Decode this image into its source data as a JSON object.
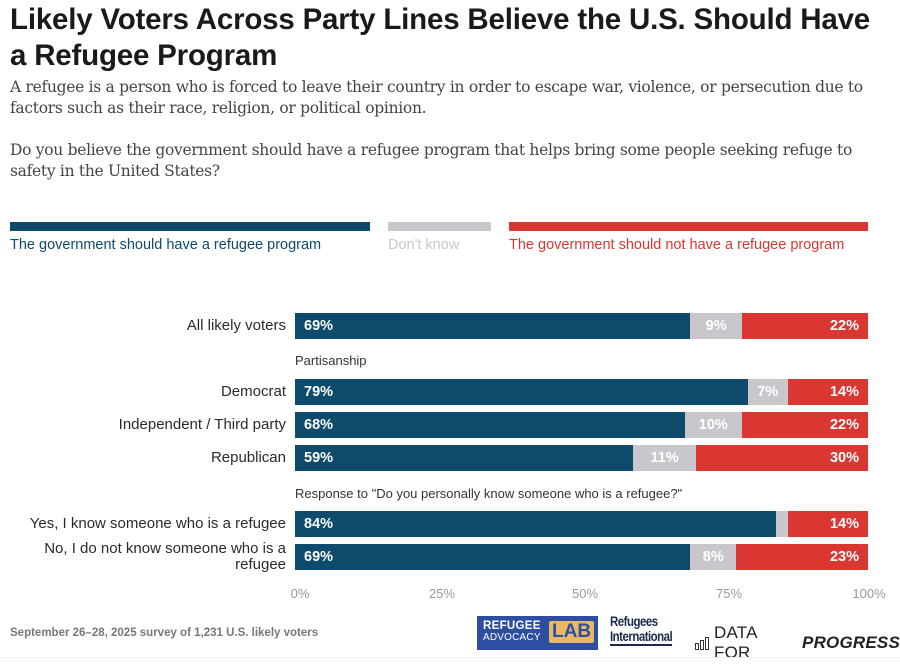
{
  "header": {
    "title": "Likely Voters Across Party Lines Believe the U.S. Should Have a Refugee Program",
    "definition": "A refugee is a person who is forced to leave their country in order to escape war, violence, or persecution due to factors such as their race, religion, or political opinion.",
    "question": "Do you believe the government should have a refugee program that helps bring some people seeking refuge to safety in the United States?"
  },
  "colors": {
    "support": "#0d4a6b",
    "dont_know": "#c9c7cc",
    "oppose": "#da3732",
    "legend_dont_know_text": "#c9c7cc"
  },
  "legend": [
    {
      "key": "support",
      "label": "The government should have a refugee program"
    },
    {
      "key": "dont_know",
      "label": "Don't know"
    },
    {
      "key": "oppose",
      "label": "The government should not have a refugee program"
    }
  ],
  "chart_data": {
    "type": "bar",
    "orientation": "horizontal-stacked",
    "title": "Likely Voters Across Party Lines Believe the U.S. Should Have a Refugee Program",
    "xlabel": "",
    "ylabel": "",
    "xlim": [
      0,
      100
    ],
    "x_ticks": [
      "0%",
      "25%",
      "50%",
      "75%",
      "100%"
    ],
    "legend_position": "top",
    "grid": false,
    "series_names": [
      "The government should have a refugee program",
      "Don't know",
      "The government should not have a refugee program"
    ],
    "groups": [
      {
        "label": "",
        "rows": [
          {
            "label": "All likely voters",
            "support": 69,
            "dont_know": 9,
            "oppose": 22,
            "labels": [
              "69%",
              "9%",
              "22%"
            ]
          }
        ]
      },
      {
        "label": "Partisanship",
        "rows": [
          {
            "label": "Democrat",
            "support": 79,
            "dont_know": 7,
            "oppose": 14,
            "labels": [
              "79%",
              "7%",
              "14%"
            ]
          },
          {
            "label": "Independent / Third party",
            "support": 68,
            "dont_know": 10,
            "oppose": 22,
            "labels": [
              "68%",
              "10%",
              "22%"
            ]
          },
          {
            "label": "Republican",
            "support": 59,
            "dont_know": 11,
            "oppose": 30,
            "labels": [
              "59%",
              "11%",
              "30%"
            ]
          }
        ]
      },
      {
        "label": "Response to \"Do you personally know someone who is a refugee?\"",
        "rows": [
          {
            "label": "Yes, I know someone who is a refugee",
            "support": 84,
            "dont_know": 2,
            "oppose": 14,
            "labels": [
              "84%",
              "",
              "14%"
            ]
          },
          {
            "label": "No, I do not know someone who is a refugee",
            "support": 69,
            "dont_know": 8,
            "oppose": 23,
            "labels": [
              "69%",
              "8%",
              "23%"
            ]
          }
        ]
      }
    ]
  },
  "footer": {
    "note": "September 26–28, 2025 survey of 1,231 U.S. likely voters",
    "logos": {
      "ral_line1": "REFUGEE",
      "ral_line2": "ADVOCACY",
      "ral_lab": "LAB",
      "ri_line1": "Refugees",
      "ri_line2": "International",
      "dfp_regular": "DATA FOR",
      "dfp_bold": "PROGRESS"
    }
  }
}
